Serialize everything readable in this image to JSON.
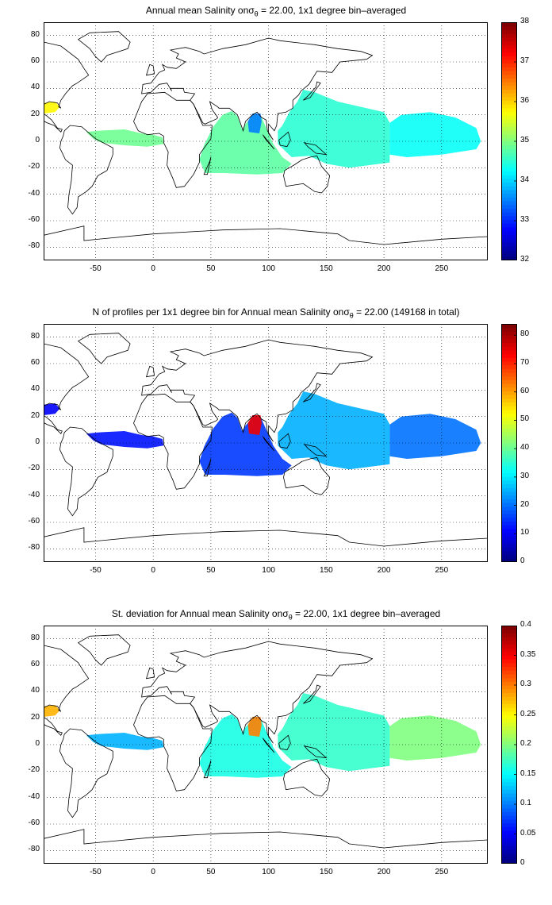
{
  "chart_data": [
    {
      "type": "heatmap",
      "title_prefix": "Annual mean Salinity on",
      "sigma_symbol": "σ",
      "sigma_subscript": "θ",
      "title_suffix": " = 22.00, 1x1 degree bin–averaged",
      "xlim": [
        -95,
        290
      ],
      "ylim": [
        -90,
        90
      ],
      "x_ticks": [
        -50,
        0,
        50,
        100,
        150,
        200,
        250
      ],
      "y_ticks": [
        80,
        60,
        40,
        20,
        0,
        -20,
        -40,
        -60,
        -80
      ],
      "colorbar": {
        "min": 32,
        "max": 38,
        "ticks": [
          32,
          33,
          34,
          35,
          36,
          37,
          38
        ]
      },
      "regions": [
        {
          "name": "Indian Ocean",
          "x": [
            40,
            120
          ],
          "y": [
            -25,
            25
          ],
          "value": 34.8
        },
        {
          "name": "Bay of Bengal",
          "x": [
            78,
            98
          ],
          "y": [
            5,
            22
          ],
          "value": 33.5
        },
        {
          "name": "Western Pacific",
          "x": [
            115,
            205
          ],
          "y": [
            -25,
            40
          ],
          "value": 34.5
        },
        {
          "name": "Eastern Pacific",
          "x": [
            205,
            285
          ],
          "y": [
            -10,
            20
          ],
          "value": 34.3
        },
        {
          "name": "Equatorial Atlantic",
          "x": [
            -60,
            10
          ],
          "y": [
            -5,
            15
          ],
          "value": 34.9
        },
        {
          "name": "Gulf of Mexico",
          "x": [
            -95,
            -80
          ],
          "y": [
            20,
            30
          ],
          "value": 35.8
        }
      ]
    },
    {
      "type": "heatmap",
      "title_prefix": "N of profiles per 1x1 degree bin for Annual mean Salinity on",
      "sigma_symbol": "σ",
      "sigma_subscript": "θ",
      "title_suffix": " = 22.00 (149168 in total)",
      "xlim": [
        -95,
        290
      ],
      "ylim": [
        -90,
        90
      ],
      "x_ticks": [
        -50,
        0,
        50,
        100,
        150,
        200,
        250
      ],
      "y_ticks": [
        80,
        60,
        40,
        20,
        0,
        -20,
        -40,
        -60,
        -80
      ],
      "colorbar": {
        "min": 0,
        "max": 84,
        "ticks": [
          0,
          10,
          20,
          30,
          40,
          50,
          60,
          70,
          80
        ]
      },
      "regions": [
        {
          "name": "Indian Ocean",
          "x": [
            40,
            120
          ],
          "y": [
            -25,
            25
          ],
          "value": 15
        },
        {
          "name": "Bay of Bengal",
          "x": [
            80,
            95
          ],
          "y": [
            5,
            22
          ],
          "value": 75
        },
        {
          "name": "Western Pacific",
          "x": [
            115,
            205
          ],
          "y": [
            -25,
            40
          ],
          "value": 25
        },
        {
          "name": "Eastern Pacific",
          "x": [
            205,
            285
          ],
          "y": [
            -10,
            20
          ],
          "value": 20
        },
        {
          "name": "Equatorial Atlantic",
          "x": [
            -60,
            10
          ],
          "y": [
            -5,
            15
          ],
          "value": 12
        },
        {
          "name": "Gulf of Mexico",
          "x": [
            -95,
            -80
          ],
          "y": [
            20,
            30
          ],
          "value": 10
        }
      ]
    },
    {
      "type": "heatmap",
      "title_prefix": "St. deviation for Annual mean Salinity on",
      "sigma_symbol": "σ",
      "sigma_subscript": "θ",
      "title_suffix": " = 22.00, 1x1 degree bin–averaged",
      "xlim": [
        -95,
        290
      ],
      "ylim": [
        -90,
        90
      ],
      "x_ticks": [
        -50,
        0,
        50,
        100,
        150,
        200,
        250
      ],
      "y_ticks": [
        80,
        60,
        40,
        20,
        0,
        -20,
        -40,
        -60,
        -80
      ],
      "colorbar": {
        "min": 0,
        "max": 0.4,
        "ticks": [
          0,
          0.05,
          0.1,
          0.15,
          0.2,
          0.25,
          0.3,
          0.35,
          0.4
        ]
      },
      "regions": [
        {
          "name": "Indian Ocean",
          "x": [
            40,
            120
          ],
          "y": [
            -25,
            25
          ],
          "value": 0.16
        },
        {
          "name": "Bay of Bengal",
          "x": [
            80,
            95
          ],
          "y": [
            5,
            22
          ],
          "value": 0.3
        },
        {
          "name": "Western Pacific",
          "x": [
            115,
            205
          ],
          "y": [
            -25,
            40
          ],
          "value": 0.17
        },
        {
          "name": "Eastern Pacific",
          "x": [
            205,
            285
          ],
          "y": [
            -10,
            20
          ],
          "value": 0.2
        },
        {
          "name": "Equatorial Atlantic",
          "x": [
            -60,
            10
          ],
          "y": [
            -5,
            15
          ],
          "value": 0.12
        },
        {
          "name": "Gulf of Mexico",
          "x": [
            -95,
            -80
          ],
          "y": [
            20,
            30
          ],
          "value": 0.28
        }
      ]
    }
  ]
}
